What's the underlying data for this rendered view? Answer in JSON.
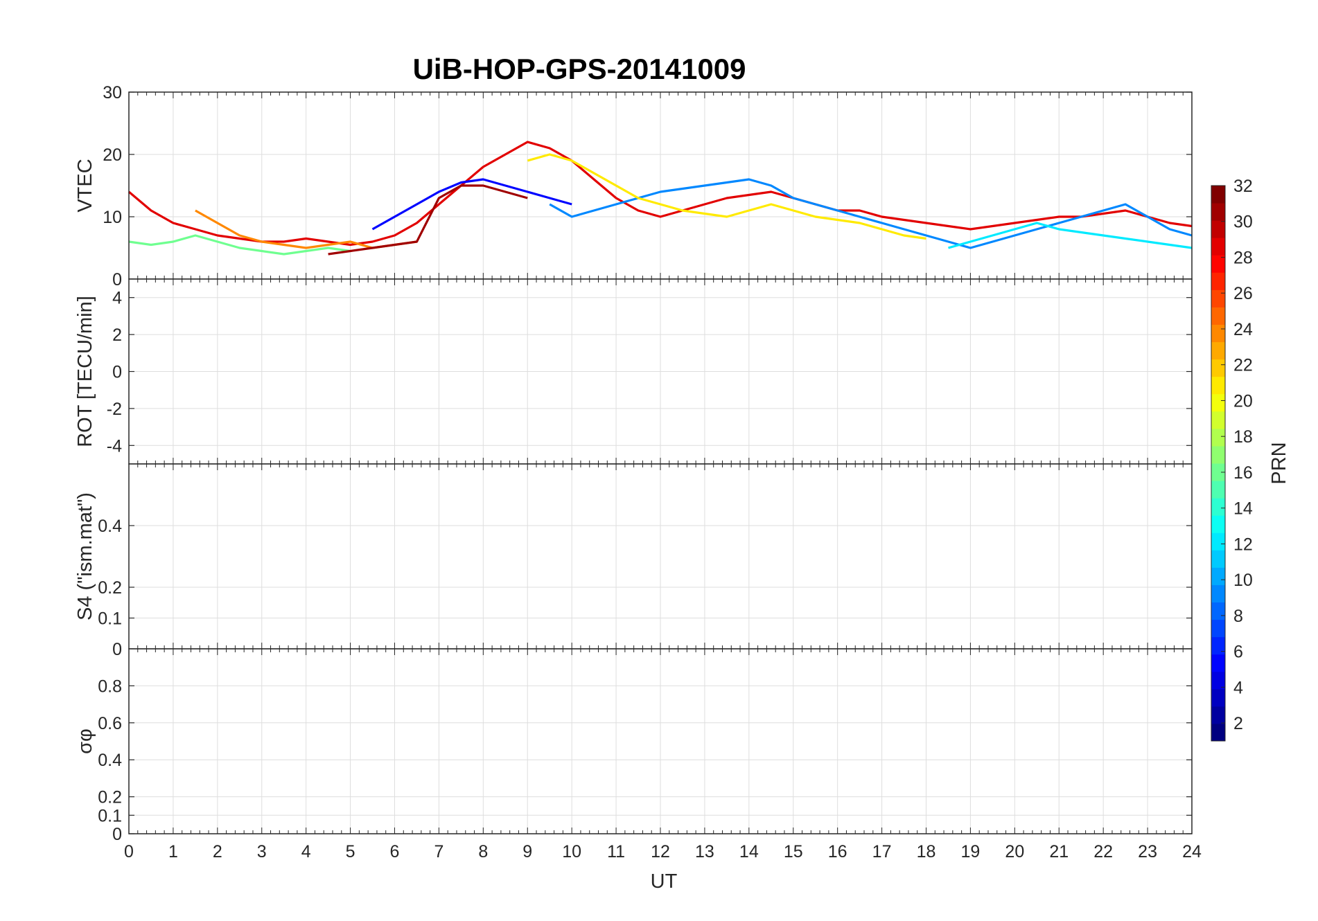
{
  "chart_data": {
    "type": "line",
    "title": "UiB-HOP-GPS-20141009",
    "xlabel": "UT",
    "x_ticks": [
      "0",
      "1",
      "2",
      "3",
      "4",
      "5",
      "6",
      "7",
      "8",
      "9",
      "10",
      "11",
      "12",
      "13",
      "14",
      "15",
      "16",
      "17",
      "18",
      "19",
      "20",
      "21",
      "22",
      "23",
      "24"
    ],
    "xlim": [
      0,
      24
    ],
    "grid": true,
    "colorbar": {
      "label": "PRN",
      "range": [
        1,
        32
      ],
      "ticks": [
        "2",
        "4",
        "6",
        "8",
        "10",
        "12",
        "14",
        "16",
        "18",
        "20",
        "22",
        "24",
        "26",
        "28",
        "30",
        "32"
      ],
      "colormap": "jet"
    },
    "panels": [
      {
        "ylabel": "VTEC",
        "ylim": [
          0,
          30
        ],
        "y_ticks": [
          "0",
          "10",
          "20",
          "30"
        ],
        "series": [
          {
            "prn": 29,
            "x": [
              0,
              0.5,
              1,
              1.5,
              2,
              2.5,
              3,
              3.5,
              4,
              4.5,
              5,
              5.5,
              6,
              6.5,
              7,
              7.5,
              8,
              8.5,
              9,
              9.5,
              10,
              10.5,
              11,
              11.5,
              12,
              12.5,
              13,
              13.5,
              14,
              14.5,
              15,
              15.5,
              16,
              16.5,
              17,
              17.5,
              18,
              18.5,
              19,
              19.5,
              20,
              20.5,
              21,
              21.5,
              22,
              22.5,
              23,
              23.5,
              24
            ],
            "y": [
              14,
              11,
              9,
              8,
              7,
              6.5,
              6,
              6,
              6.5,
              6,
              5.5,
              6,
              7,
              9,
              12,
              15,
              18,
              20,
              22,
              21,
              19,
              16,
              13,
              11,
              10,
              11,
              12,
              13,
              13.5,
              14,
              13,
              12,
              11,
              11,
              10,
              9.5,
              9,
              8.5,
              8,
              8.5,
              9,
              9.5,
              10,
              10,
              10.5,
              11,
              10,
              9,
              8.5
            ]
          },
          {
            "prn": 5,
            "x": [
              5.5,
              6,
              6.5,
              7,
              7.5,
              8,
              8.5,
              9,
              9.5,
              10
            ],
            "y": [
              8,
              10,
              12,
              14,
              15.5,
              16,
              15,
              14,
              13,
              12
            ]
          },
          {
            "prn": 9,
            "x": [
              9.5,
              10,
              10.5,
              11,
              11.5,
              12,
              12.5,
              13,
              13.5,
              14,
              14.5,
              15,
              15.5,
              16,
              16.5,
              17,
              17.5,
              18,
              18.5,
              19,
              19.5,
              20,
              20.5,
              21,
              21.5,
              22,
              22.5,
              23,
              23.5,
              24
            ],
            "y": [
              12,
              10,
              11,
              12,
              13,
              14,
              14.5,
              15,
              15.5,
              16,
              15,
              13,
              12,
              11,
              10,
              9,
              8,
              7,
              6,
              5,
              6,
              7,
              8,
              9,
              10,
              11,
              12,
              10,
              8,
              7
            ]
          },
          {
            "prn": 21,
            "x": [
              9,
              9.5,
              10,
              10.5,
              11,
              11.5,
              12,
              12.5,
              13,
              13.5,
              14,
              14.5,
              15,
              15.5,
              16,
              16.5,
              17,
              17.5,
              18
            ],
            "y": [
              19,
              20,
              19,
              17,
              15,
              13,
              12,
              11,
              10.5,
              10,
              11,
              12,
              11,
              10,
              9.5,
              9,
              8,
              7,
              6.5
            ]
          },
          {
            "prn": 16,
            "x": [
              0,
              0.5,
              1,
              1.5,
              2,
              2.5,
              3,
              3.5,
              4,
              4.5,
              5
            ],
            "y": [
              6,
              5.5,
              6,
              7,
              6,
              5,
              4.5,
              4,
              4.5,
              5,
              4.5
            ]
          },
          {
            "prn": 24,
            "x": [
              1.5,
              2,
              2.5,
              3,
              3.5,
              4,
              4.5,
              5,
              5.5,
              6,
              6.5
            ],
            "y": [
              11,
              9,
              7,
              6,
              5.5,
              5,
              5.5,
              6,
              5,
              5.5,
              6
            ]
          },
          {
            "prn": 12,
            "x": [
              18.5,
              19,
              19.5,
              20,
              20.5,
              21,
              21.5,
              22,
              22.5,
              23,
              23.5,
              24
            ],
            "y": [
              5,
              6,
              7,
              8,
              9,
              8,
              7.5,
              7,
              6.5,
              6,
              5.5,
              5
            ]
          },
          {
            "prn": 31,
            "x": [
              4.5,
              5,
              5.5,
              6,
              6.5,
              7,
              7.5,
              8,
              8.5,
              9
            ],
            "y": [
              4,
              4.5,
              5,
              5.5,
              6,
              13,
              15,
              15,
              14,
              13
            ]
          }
        ]
      },
      {
        "ylabel": "ROT [TECU/min]",
        "ylim": [
          -5,
          5
        ],
        "y_ticks": [
          "-4",
          "-2",
          "0",
          "2",
          "4"
        ]
      },
      {
        "ylabel": "S4 (\"ism.mat\")",
        "ylim": [
          0,
          0.6
        ],
        "y_ticks": [
          "0",
          "0.1",
          "0.2",
          "0.4"
        ]
      },
      {
        "ylabel": "σφ",
        "ylim": [
          0,
          1
        ],
        "y_ticks": [
          "0",
          "0.1",
          "0.2",
          "0.4",
          "0.6",
          "0.8"
        ]
      }
    ]
  }
}
